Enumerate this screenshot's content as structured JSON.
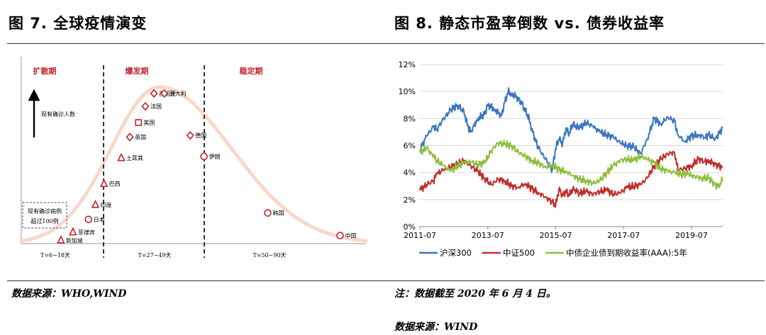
{
  "left_panel": {
    "title": "图 7. 全球疫情演变",
    "source": "数据来源：WHO,WIND",
    "chart_data": {
      "type": "diagram",
      "y_axis_label": "现有确诊人数",
      "phases": [
        {
          "name": "扩散期",
          "period": "T=6~18天"
        },
        {
          "name": "爆发期",
          "period": "T=27~49天"
        },
        {
          "name": "稳定期",
          "period": "T=50~90天"
        }
      ],
      "box_text": [
        "现有确诊病例",
        "超过100例"
      ],
      "colors": {
        "curve": "#f8d8c8",
        "marker": "#c0242c",
        "phase_label": "#c0242c"
      },
      "points": [
        {
          "label": "新加坡",
          "marker": "triangle",
          "x": 0.115,
          "y": 0.02
        },
        {
          "label": "菲律宾",
          "marker": "triangle",
          "x": 0.15,
          "y": 0.07
        },
        {
          "label": "日本",
          "marker": "circle",
          "x": 0.195,
          "y": 0.15
        },
        {
          "label": "印度",
          "marker": "triangle",
          "x": 0.215,
          "y": 0.24
        },
        {
          "label": "巴西",
          "marker": "triangle",
          "x": 0.24,
          "y": 0.37
        },
        {
          "label": "土耳其",
          "marker": "triangle",
          "x": 0.29,
          "y": 0.53
        },
        {
          "label": "英国",
          "marker": "diamond",
          "x": 0.315,
          "y": 0.66
        },
        {
          "label": "美国",
          "marker": "square",
          "x": 0.34,
          "y": 0.75
        },
        {
          "label": "法国",
          "marker": "diamond",
          "x": 0.36,
          "y": 0.85
        },
        {
          "label": "西班牙",
          "marker": "diamond",
          "x": 0.385,
          "y": 0.93
        },
        {
          "label": "意大利",
          "marker": "diamond",
          "x": 0.415,
          "y": 0.93
        },
        {
          "label": "德国",
          "marker": "diamond",
          "x": 0.49,
          "y": 0.67
        },
        {
          "label": "伊朗",
          "marker": "circle",
          "x": 0.53,
          "y": 0.54
        },
        {
          "label": "韩国",
          "marker": "circle",
          "x": 0.715,
          "y": 0.19
        },
        {
          "label": "中国",
          "marker": "circle",
          "x": 0.925,
          "y": 0.05
        }
      ]
    }
  },
  "right_panel": {
    "title": "图 8.  静态市盈率倒数 vs. 债券收益率",
    "note": "注：数据截至 2020 年 6 月 4 日。",
    "source": "数据来源：WIND",
    "chart_data": {
      "type": "line",
      "ylim": [
        0,
        12
      ],
      "yticks": [
        "0%",
        "2%",
        "4%",
        "6%",
        "8%",
        "10%",
        "12%"
      ],
      "xlim": [
        2011.5,
        2020.42
      ],
      "xticks": [
        "2011-07",
        "2013-07",
        "2015-07",
        "2017-07",
        "2019-07"
      ],
      "grid": true,
      "legend_position": "bottom",
      "series": [
        {
          "name": "沪深300",
          "color": "#3d76c0",
          "x": [
            2011.5,
            2011.7,
            2011.9,
            2012.0,
            2012.2,
            2012.4,
            2012.6,
            2012.8,
            2012.9,
            2013.0,
            2013.2,
            2013.4,
            2013.5,
            2013.7,
            2013.9,
            2014.0,
            2014.1,
            2014.2,
            2014.35,
            2014.5,
            2014.6,
            2014.7,
            2014.8,
            2014.9,
            2015.0,
            2015.2,
            2015.4,
            2015.5,
            2015.6,
            2015.7,
            2015.8,
            2015.9,
            2016.0,
            2016.1,
            2016.2,
            2016.4,
            2016.6,
            2016.8,
            2017.0,
            2017.2,
            2017.4,
            2017.6,
            2017.8,
            2018.0,
            2018.2,
            2018.4,
            2018.6,
            2018.8,
            2019.0,
            2019.1,
            2019.3,
            2019.5,
            2019.7,
            2019.9,
            2020.0,
            2020.2,
            2020.42
          ],
          "values": [
            5.7,
            6.7,
            7.4,
            7.2,
            8.0,
            8.6,
            9.0,
            8.5,
            7.5,
            7.0,
            8.0,
            8.3,
            9.0,
            8.7,
            8.2,
            9.2,
            10.0,
            9.8,
            9.6,
            9.1,
            8.6,
            8.1,
            7.2,
            6.4,
            5.8,
            5.0,
            4.2,
            5.8,
            6.5,
            6.1,
            7.2,
            6.9,
            7.6,
            7.4,
            7.3,
            7.7,
            7.4,
            7.0,
            6.8,
            6.6,
            6.2,
            6.0,
            5.9,
            5.4,
            6.5,
            8.0,
            7.6,
            8.1,
            7.8,
            6.8,
            6.3,
            6.7,
            6.8,
            6.6,
            6.8,
            6.5,
            7.3
          ]
        },
        {
          "name": "中证500",
          "color": "#c0312c",
          "x": [
            2011.5,
            2011.7,
            2011.9,
            2012.0,
            2012.2,
            2012.4,
            2012.6,
            2012.8,
            2013.0,
            2013.2,
            2013.4,
            2013.6,
            2013.8,
            2014.0,
            2014.2,
            2014.4,
            2014.6,
            2014.8,
            2015.0,
            2015.2,
            2015.4,
            2015.5,
            2015.6,
            2015.7,
            2015.8,
            2015.9,
            2016.0,
            2016.2,
            2016.4,
            2016.6,
            2016.8,
            2017.0,
            2017.2,
            2017.4,
            2017.6,
            2017.8,
            2018.0,
            2018.2,
            2018.4,
            2018.6,
            2018.8,
            2019.0,
            2019.1,
            2019.3,
            2019.5,
            2019.7,
            2019.9,
            2020.0,
            2020.2,
            2020.42
          ],
          "values": [
            2.7,
            3.1,
            3.4,
            3.9,
            4.2,
            4.4,
            4.6,
            4.9,
            4.5,
            4.1,
            3.6,
            3.1,
            3.5,
            3.4,
            3.0,
            2.9,
            3.2,
            2.8,
            2.5,
            2.2,
            1.8,
            1.6,
            2.8,
            2.3,
            2.6,
            2.3,
            2.8,
            2.5,
            2.6,
            2.4,
            2.6,
            2.7,
            2.4,
            2.5,
            2.9,
            3.0,
            3.1,
            3.6,
            4.5,
            5.0,
            5.4,
            5.5,
            4.2,
            4.3,
            4.5,
            5.0,
            4.8,
            4.9,
            4.6,
            4.4
          ]
        },
        {
          "name": "中债企业债到期收益率(AAA):5年",
          "color": "#8fbf3e",
          "x": [
            2011.5,
            2011.7,
            2011.9,
            2012.0,
            2012.2,
            2012.4,
            2012.6,
            2012.8,
            2013.0,
            2013.2,
            2013.4,
            2013.6,
            2013.8,
            2014.0,
            2014.2,
            2014.4,
            2014.6,
            2014.8,
            2015.0,
            2015.2,
            2015.4,
            2015.6,
            2015.8,
            2016.0,
            2016.2,
            2016.4,
            2016.6,
            2016.8,
            2017.0,
            2017.2,
            2017.4,
            2017.6,
            2017.8,
            2018.0,
            2018.2,
            2018.4,
            2018.6,
            2018.8,
            2019.0,
            2019.2,
            2019.4,
            2019.6,
            2019.8,
            2020.0,
            2020.2,
            2020.3,
            2020.42
          ],
          "values": [
            5.5,
            5.8,
            5.2,
            4.9,
            4.5,
            4.1,
            4.5,
            4.7,
            4.8,
            4.6,
            4.7,
            5.6,
            6.2,
            6.1,
            6.0,
            5.5,
            5.2,
            4.9,
            4.7,
            4.4,
            4.6,
            4.2,
            4.1,
            3.8,
            3.5,
            3.4,
            3.2,
            3.4,
            4.0,
            4.5,
            4.9,
            5.0,
            4.9,
            5.2,
            5.0,
            4.7,
            4.3,
            4.1,
            4.0,
            3.9,
            3.9,
            3.7,
            3.6,
            3.6,
            3.1,
            3.0,
            3.5
          ]
        }
      ]
    }
  }
}
